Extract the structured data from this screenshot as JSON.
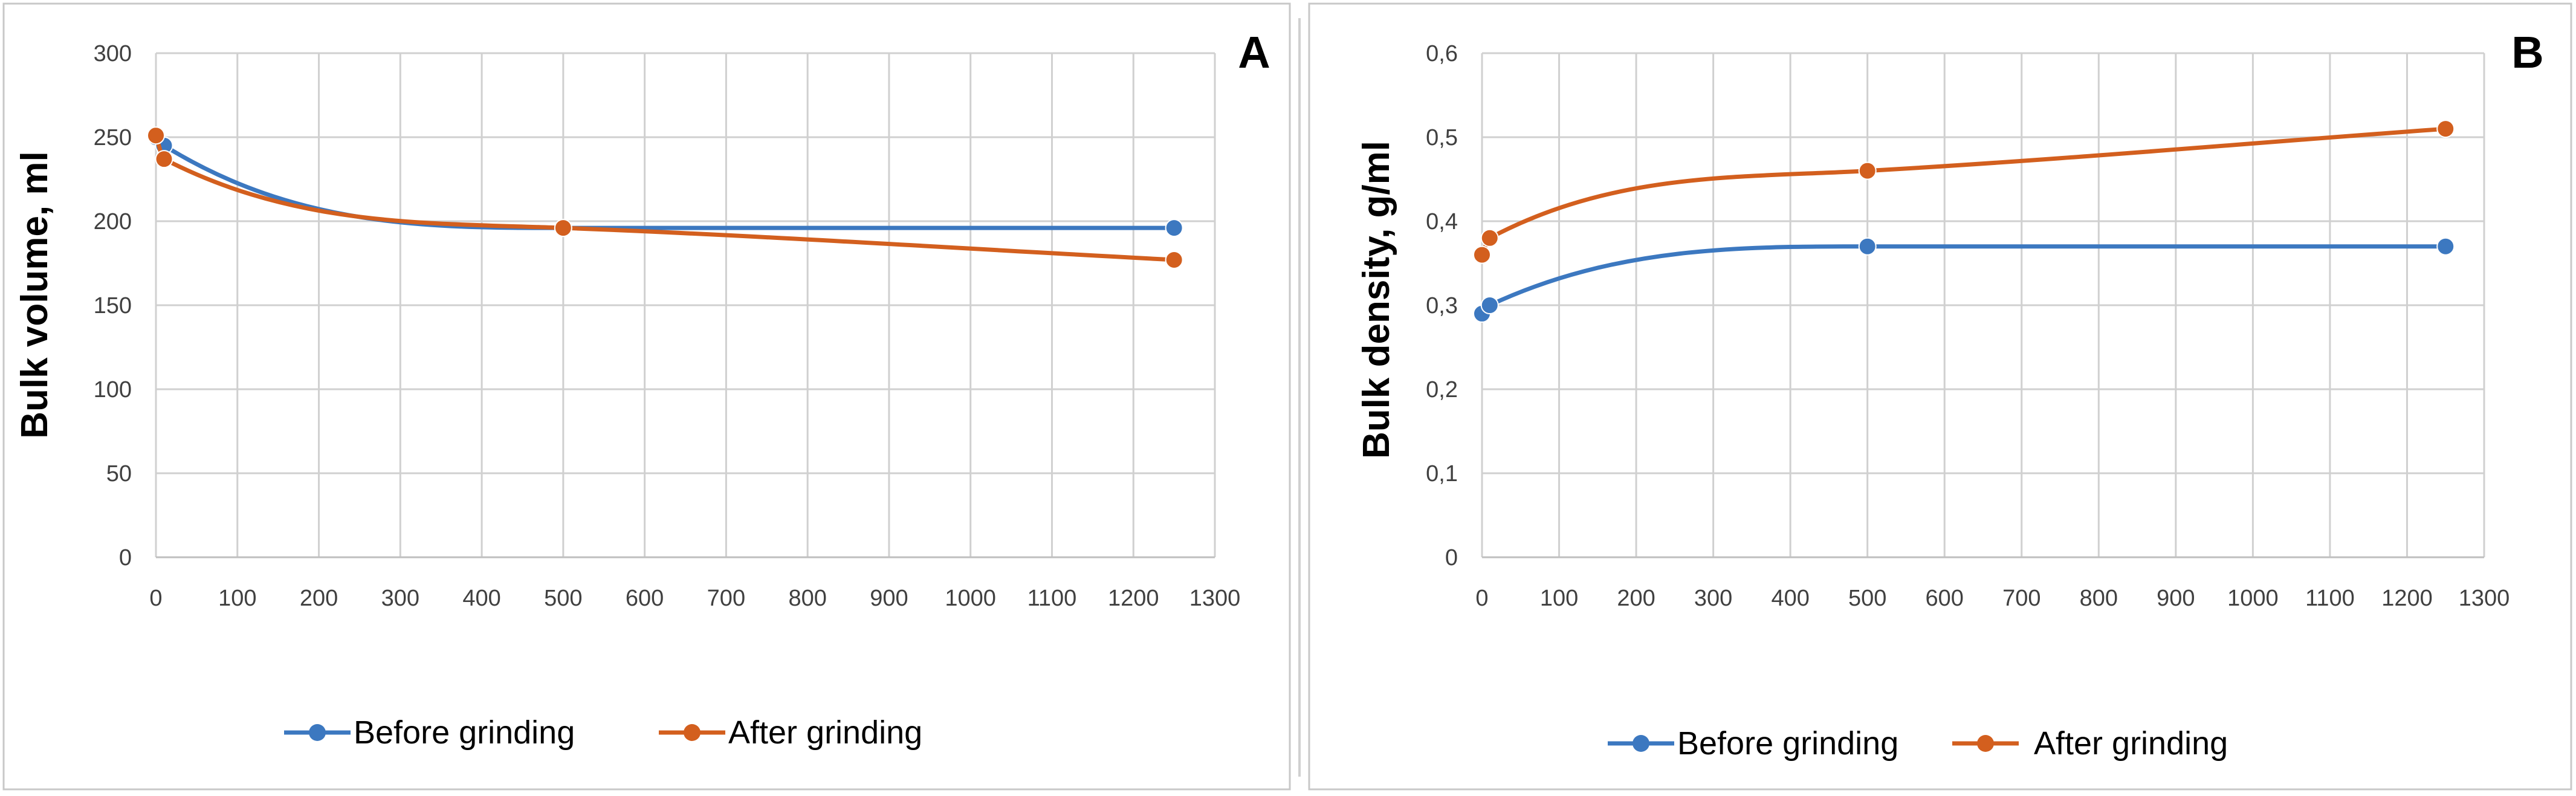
{
  "chart_data": [
    {
      "type": "line",
      "panel_label": "A",
      "title": "",
      "xlabel": "",
      "ylabel": "Bulk volume, ml",
      "xlim": [
        0,
        1300
      ],
      "ylim": [
        0,
        300
      ],
      "x_ticks": [
        0,
        100,
        200,
        300,
        400,
        500,
        600,
        700,
        800,
        900,
        1000,
        1100,
        1200,
        1300
      ],
      "x_tick_labels": [
        "0",
        "100",
        "200",
        "300",
        "400",
        "500",
        "600",
        "700",
        "800",
        "900",
        "1000",
        "1100",
        "1200",
        "1300"
      ],
      "y_ticks": [
        0,
        50,
        100,
        150,
        200,
        250,
        300
      ],
      "y_tick_labels": [
        "0",
        "50",
        "100",
        "150",
        "200",
        "250",
        "300"
      ],
      "grid": true,
      "legend_position": "bottom",
      "series": [
        {
          "name": "Before grinding",
          "color": "#3c78c0",
          "x": [
            0,
            10,
            500,
            1250
          ],
          "y": [
            250,
            245,
            196,
            196
          ]
        },
        {
          "name": "After grinding",
          "color": "#d35f1e",
          "x": [
            0,
            10,
            500,
            1250
          ],
          "y": [
            251,
            237,
            196,
            177
          ]
        }
      ]
    },
    {
      "type": "line",
      "panel_label": "B",
      "title": "",
      "xlabel": "",
      "ylabel": "Bulk density, g/ml",
      "xlim": [
        0,
        1300
      ],
      "ylim": [
        0,
        0.6
      ],
      "x_ticks": [
        0,
        100,
        200,
        300,
        400,
        500,
        600,
        700,
        800,
        900,
        1000,
        1100,
        1200,
        1300
      ],
      "x_tick_labels": [
        "0",
        "100",
        "200",
        "300",
        "400",
        "500",
        "600",
        "700",
        "800",
        "900",
        "1000",
        "1100",
        "1200",
        "1300"
      ],
      "y_ticks": [
        0,
        0.1,
        0.2,
        0.3,
        0.4,
        0.5,
        0.6
      ],
      "y_tick_labels": [
        "0",
        "0,1",
        "0,2",
        "0,3",
        "0,4",
        "0,5",
        "0,6"
      ],
      "grid": true,
      "legend_position": "bottom",
      "series": [
        {
          "name": "Before grinding",
          "color": "#3c78c0",
          "x": [
            0,
            10,
            500,
            1250
          ],
          "y": [
            0.29,
            0.3,
            0.37,
            0.37
          ]
        },
        {
          "name": "After grinding",
          "color": "#d35f1e",
          "x": [
            0,
            10,
            500,
            1250
          ],
          "y": [
            0.36,
            0.38,
            0.46,
            0.51
          ]
        }
      ]
    }
  ]
}
